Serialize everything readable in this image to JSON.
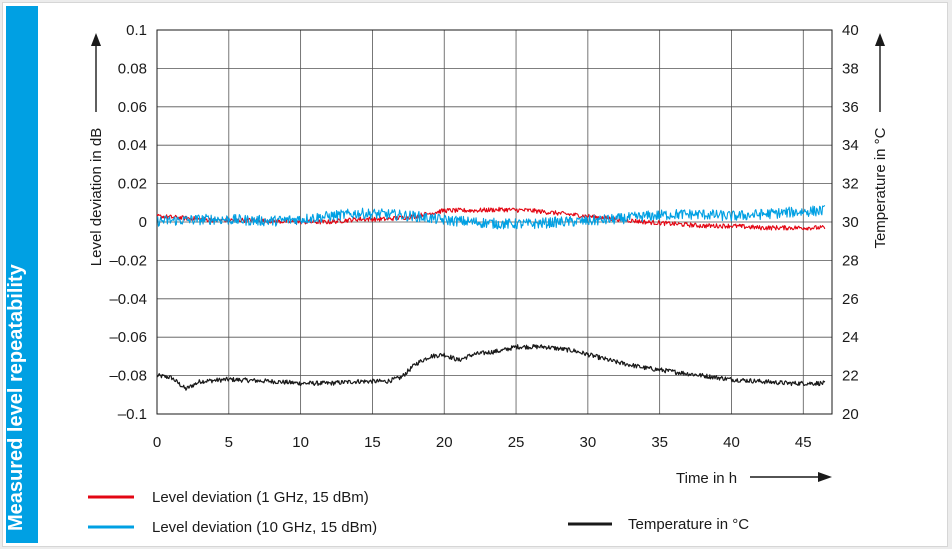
{
  "sidebar": {
    "title": "Measured level repeatability"
  },
  "chart_data": {
    "type": "line",
    "xlabel": "Time in h",
    "ylabel": "Level deviation in dB",
    "y2label": "Temperature in °C",
    "xlim": [
      0,
      47
    ],
    "ylim": [
      -0.1,
      0.1
    ],
    "y2lim": [
      20,
      40
    ],
    "x_ticks": [
      0,
      5,
      10,
      15,
      20,
      25,
      30,
      35,
      40,
      45
    ],
    "y_ticks": [
      0.1,
      0.08,
      0.06,
      0.04,
      0.02,
      0,
      -0.02,
      -0.04,
      -0.06,
      -0.08,
      -0.1
    ],
    "y_tick_labels": [
      "0.1",
      "0.08",
      "0.06",
      "0.04",
      "0.02",
      "0",
      "–0.02",
      "–0.04",
      "–0.06",
      "–0.08",
      "–0.1"
    ],
    "y2_ticks": [
      40,
      38,
      36,
      34,
      32,
      30,
      28,
      26,
      24,
      22,
      20
    ],
    "grid": true,
    "series": [
      {
        "name": "Level deviation (1 GHz, 15 dBm)",
        "axis": "left",
        "color": "#e30613",
        "x": [
          0,
          2,
          4,
          6,
          8,
          10,
          12,
          14,
          16,
          18,
          20,
          22,
          24,
          26,
          28,
          30,
          32,
          34,
          36,
          38,
          40,
          42,
          44,
          46.5
        ],
        "y": [
          0.003,
          0.002,
          0.001,
          0.001,
          0.0005,
          0.0,
          0.0,
          0.0015,
          0.0015,
          0.003,
          0.006,
          0.006,
          0.0065,
          0.006,
          0.0045,
          0.003,
          0.0015,
          0.0,
          -0.001,
          -0.002,
          -0.002,
          -0.003,
          -0.003,
          -0.003
        ]
      },
      {
        "name": "Level deviation (10 GHz, 15 dBm)",
        "axis": "left",
        "color": "#00a0e3",
        "x": [
          0,
          2,
          4,
          6,
          8,
          10,
          12,
          14,
          16,
          18,
          20,
          22,
          24,
          26,
          28,
          30,
          32,
          34,
          36,
          38,
          40,
          42,
          44,
          46.5
        ],
        "y": [
          0.0005,
          0.001,
          0.0015,
          0.001,
          0.0005,
          0.0015,
          0.003,
          0.0045,
          0.004,
          0.003,
          0.001,
          0.0,
          -0.001,
          -0.001,
          0.0,
          0.0005,
          0.0015,
          0.003,
          0.004,
          0.004,
          0.003,
          0.004,
          0.005,
          0.006
        ]
      },
      {
        "name": "Temperature in °C",
        "axis": "right",
        "color": "#1a1a1a",
        "x": [
          0,
          1,
          2,
          3,
          5,
          8,
          10,
          12,
          14,
          16,
          17,
          18,
          19,
          20,
          21,
          22,
          23,
          24,
          25,
          26,
          27,
          28,
          29,
          30,
          32,
          34,
          36,
          38,
          40,
          42,
          44,
          46.5
        ],
        "y": [
          22.0,
          21.9,
          21.3,
          21.7,
          21.8,
          21.7,
          21.6,
          21.6,
          21.7,
          21.7,
          21.9,
          22.6,
          23.0,
          23.1,
          22.8,
          23.1,
          23.2,
          23.3,
          23.5,
          23.5,
          23.5,
          23.4,
          23.3,
          23.1,
          22.7,
          22.4,
          22.2,
          22.0,
          21.8,
          21.7,
          21.6,
          21.6
        ]
      }
    ]
  }
}
